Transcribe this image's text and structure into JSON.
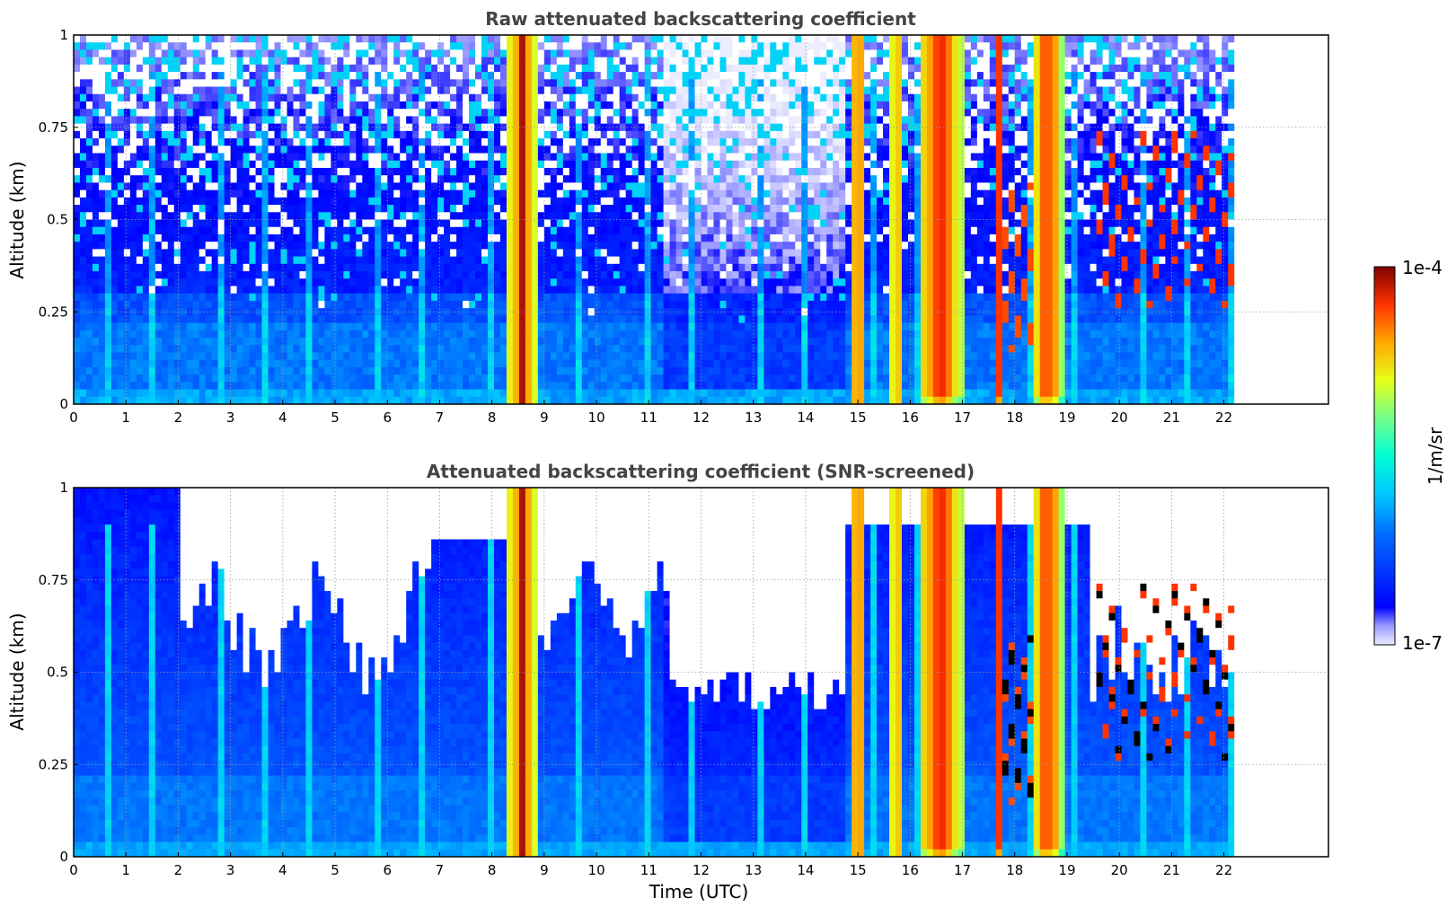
{
  "chart_data": [
    {
      "type": "heatmap",
      "title": "Raw attenuated backscattering coefficient",
      "xlabel": "",
      "ylabel": "Altitude (km)",
      "xlim": [
        0,
        24
      ],
      "ylim": [
        0,
        1
      ],
      "xticks": [
        "0",
        "1",
        "2",
        "3",
        "4",
        "5",
        "6",
        "7",
        "8",
        "9",
        "10",
        "11",
        "12",
        "13",
        "14",
        "15",
        "16",
        "17",
        "18",
        "19",
        "20",
        "21",
        "22"
      ],
      "yticks": [
        "0",
        "0.25",
        "0.5",
        "0.75",
        "1"
      ],
      "grid": true,
      "data_end_time": 22.2,
      "screened": false
    },
    {
      "type": "heatmap",
      "title": "Attenuated backscattering coefficient (SNR-screened)",
      "xlabel": "Time (UTC)",
      "ylabel": "Altitude (km)",
      "xlim": [
        0,
        24
      ],
      "ylim": [
        0,
        1
      ],
      "xticks": [
        "0",
        "1",
        "2",
        "3",
        "4",
        "5",
        "6",
        "7",
        "8",
        "9",
        "10",
        "11",
        "12",
        "13",
        "14",
        "15",
        "16",
        "17",
        "18",
        "19",
        "20",
        "21",
        "22"
      ],
      "yticks": [
        "0",
        "0.25",
        "0.5",
        "0.75",
        "1"
      ],
      "grid": true,
      "data_end_time": 22.2,
      "screened": true
    }
  ],
  "colorbar": {
    "label": "1/m/sr",
    "max_label": "1e-4",
    "min_label": "1e-7",
    "colormap": "jet",
    "scale": "log"
  },
  "features": {
    "dense_layers": [
      {
        "t0": 8.3,
        "t1": 8.85
      },
      {
        "t0": 14.85,
        "t1": 15.15
      },
      {
        "t0": 15.65,
        "t1": 15.8
      },
      {
        "t0": 16.15,
        "t1": 17.0
      },
      {
        "t0": 17.65,
        "t1": 17.75
      },
      {
        "t0": 18.35,
        "t1": 18.9
      }
    ],
    "broken_cloud_region": {
      "t0": 19.6,
      "t1": 22.2,
      "top": 0.75,
      "base": 0.25
    }
  }
}
